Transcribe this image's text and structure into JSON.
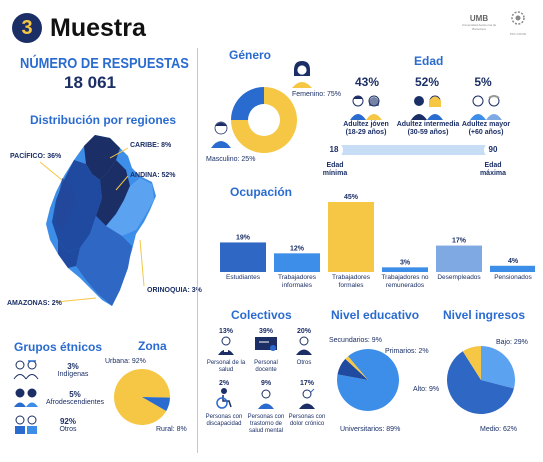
{
  "header": {
    "number": "3",
    "title": "Muestra",
    "logo_umb": "UMB",
    "logo_umb_sub": "Universidad Autónoma de Barcelona",
    "logo_psy": "PSY-COVID"
  },
  "responses": {
    "title": "NÚMERO DE RESPUESTAS",
    "value": "18 061"
  },
  "regions": {
    "title": "Distribución por regiones",
    "items": [
      {
        "label": "PACÍFICO: 36%"
      },
      {
        "label": "CARIBE: 8%"
      },
      {
        "label": "ANDINA: 52%"
      },
      {
        "label": "ORINOQUIA: 3%"
      },
      {
        "label": "AMAZONAS: 2%"
      }
    ]
  },
  "gender": {
    "title": "Género",
    "female": "Femenino: 75%",
    "male": "Masculino: 25%",
    "female_pct": 75,
    "male_pct": 25
  },
  "age": {
    "title": "Edad",
    "groups": [
      {
        "pct": "43%",
        "label": "Adultez jóven",
        "range": "(18-29 años)"
      },
      {
        "pct": "52%",
        "label": "Adultez intermedia",
        "range": "(30-59 años)"
      },
      {
        "pct": "5%",
        "label": "Adultez mayor",
        "range": "(+60 años)"
      }
    ],
    "min_value": "18",
    "min_label": "Edad mínima",
    "max_value": "90",
    "max_label": "Edad máxima"
  },
  "occupation": {
    "title": "Ocupación",
    "chart_data": {
      "type": "bar",
      "categories": [
        "Estudiantes",
        "Trabajadores informales",
        "Trabajadores formales",
        "Trabajadores no remunerados",
        "Desempleados",
        "Pensionados"
      ],
      "values": [
        19,
        12,
        45,
        3,
        17,
        4
      ],
      "value_labels": [
        "19%",
        "12%",
        "45%",
        "3%",
        "17%",
        "4%"
      ],
      "colors": [
        "#2f67c4",
        "#3d8ee8",
        "#f5c744",
        "#3d8ee8",
        "#7fa9e3",
        "#3d8ee8"
      ],
      "ylim": [
        0,
        45
      ]
    }
  },
  "ethnic": {
    "title": "Grupos étnicos",
    "items": [
      {
        "pct": "3%",
        "label": "Indígenas"
      },
      {
        "pct": "5%",
        "label": "Afrodescendientes"
      },
      {
        "pct": "92%",
        "label": "Otros"
      }
    ]
  },
  "zone": {
    "title": "Zona",
    "urban": "Urbana: 92%",
    "rural": "Rural: 8%",
    "urban_pct": 92,
    "rural_pct": 8
  },
  "collectives": {
    "title": "Colectivos",
    "items": [
      {
        "pct": "13%",
        "label": "Personal de la salud"
      },
      {
        "pct": "39%",
        "label": "Personal docente"
      },
      {
        "pct": "20%",
        "label": "Otros"
      },
      {
        "pct": "2%",
        "label": "Personas con discapacidad"
      },
      {
        "pct": "9%",
        "label": "Personas con trastorno de salud mental"
      },
      {
        "pct": "17%",
        "label": "Personas con dolor crónico"
      }
    ]
  },
  "education": {
    "title": "Nivel educativo",
    "secondary": "Secundarios: 9%",
    "primary": "Primarios: 2%",
    "university": "Universitarios: 89%",
    "chart_data": {
      "type": "pie",
      "categories": [
        "Universitarios",
        "Secundarios",
        "Primarios"
      ],
      "values": [
        89,
        9,
        2
      ]
    }
  },
  "income": {
    "title": "Nivel ingresos",
    "low": "Bajo: 29%",
    "high": "Alto: 9%",
    "medium": "Medio: 62%",
    "chart_data": {
      "type": "pie",
      "categories": [
        "Bajo",
        "Medio",
        "Alto"
      ],
      "values": [
        29,
        62,
        9
      ]
    }
  },
  "colors": {
    "accent_yellow": "#f5c744",
    "blue": "#2a6bd0",
    "navy": "#1b2f66",
    "light_blue": "#3d8ee8"
  }
}
